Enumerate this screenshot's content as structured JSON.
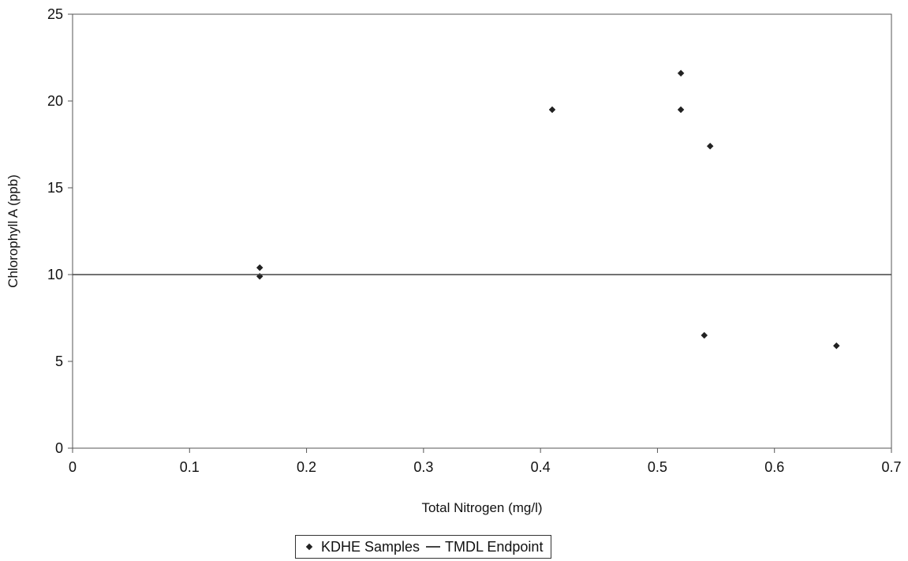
{
  "chart_data": {
    "type": "scatter",
    "xlabel": "Total Nitrogen (mg/l)",
    "ylabel": "Chlorophyll A (ppb)",
    "xlim": [
      0,
      0.7
    ],
    "ylim": [
      0,
      25
    ],
    "x_ticks": [
      "0",
      "0.1",
      "0.2",
      "0.3",
      "0.4",
      "0.5",
      "0.6",
      "0.7"
    ],
    "y_ticks": [
      "0",
      "5",
      "10",
      "15",
      "20",
      "25"
    ],
    "grid": false,
    "legend_position": "bottom",
    "series": [
      {
        "name": "KDHE Samples",
        "kind": "scatter",
        "marker": "diamond",
        "color": "#222222",
        "points": [
          {
            "x": 0.16,
            "y": 10.4
          },
          {
            "x": 0.16,
            "y": 9.9
          },
          {
            "x": 0.41,
            "y": 19.5
          },
          {
            "x": 0.52,
            "y": 21.6
          },
          {
            "x": 0.52,
            "y": 19.5
          },
          {
            "x": 0.545,
            "y": 17.4
          },
          {
            "x": 0.54,
            "y": 6.5
          },
          {
            "x": 0.653,
            "y": 5.9
          }
        ]
      },
      {
        "name": "TMDL Endpoint",
        "kind": "line",
        "color": "#444444",
        "y": 10
      }
    ]
  }
}
